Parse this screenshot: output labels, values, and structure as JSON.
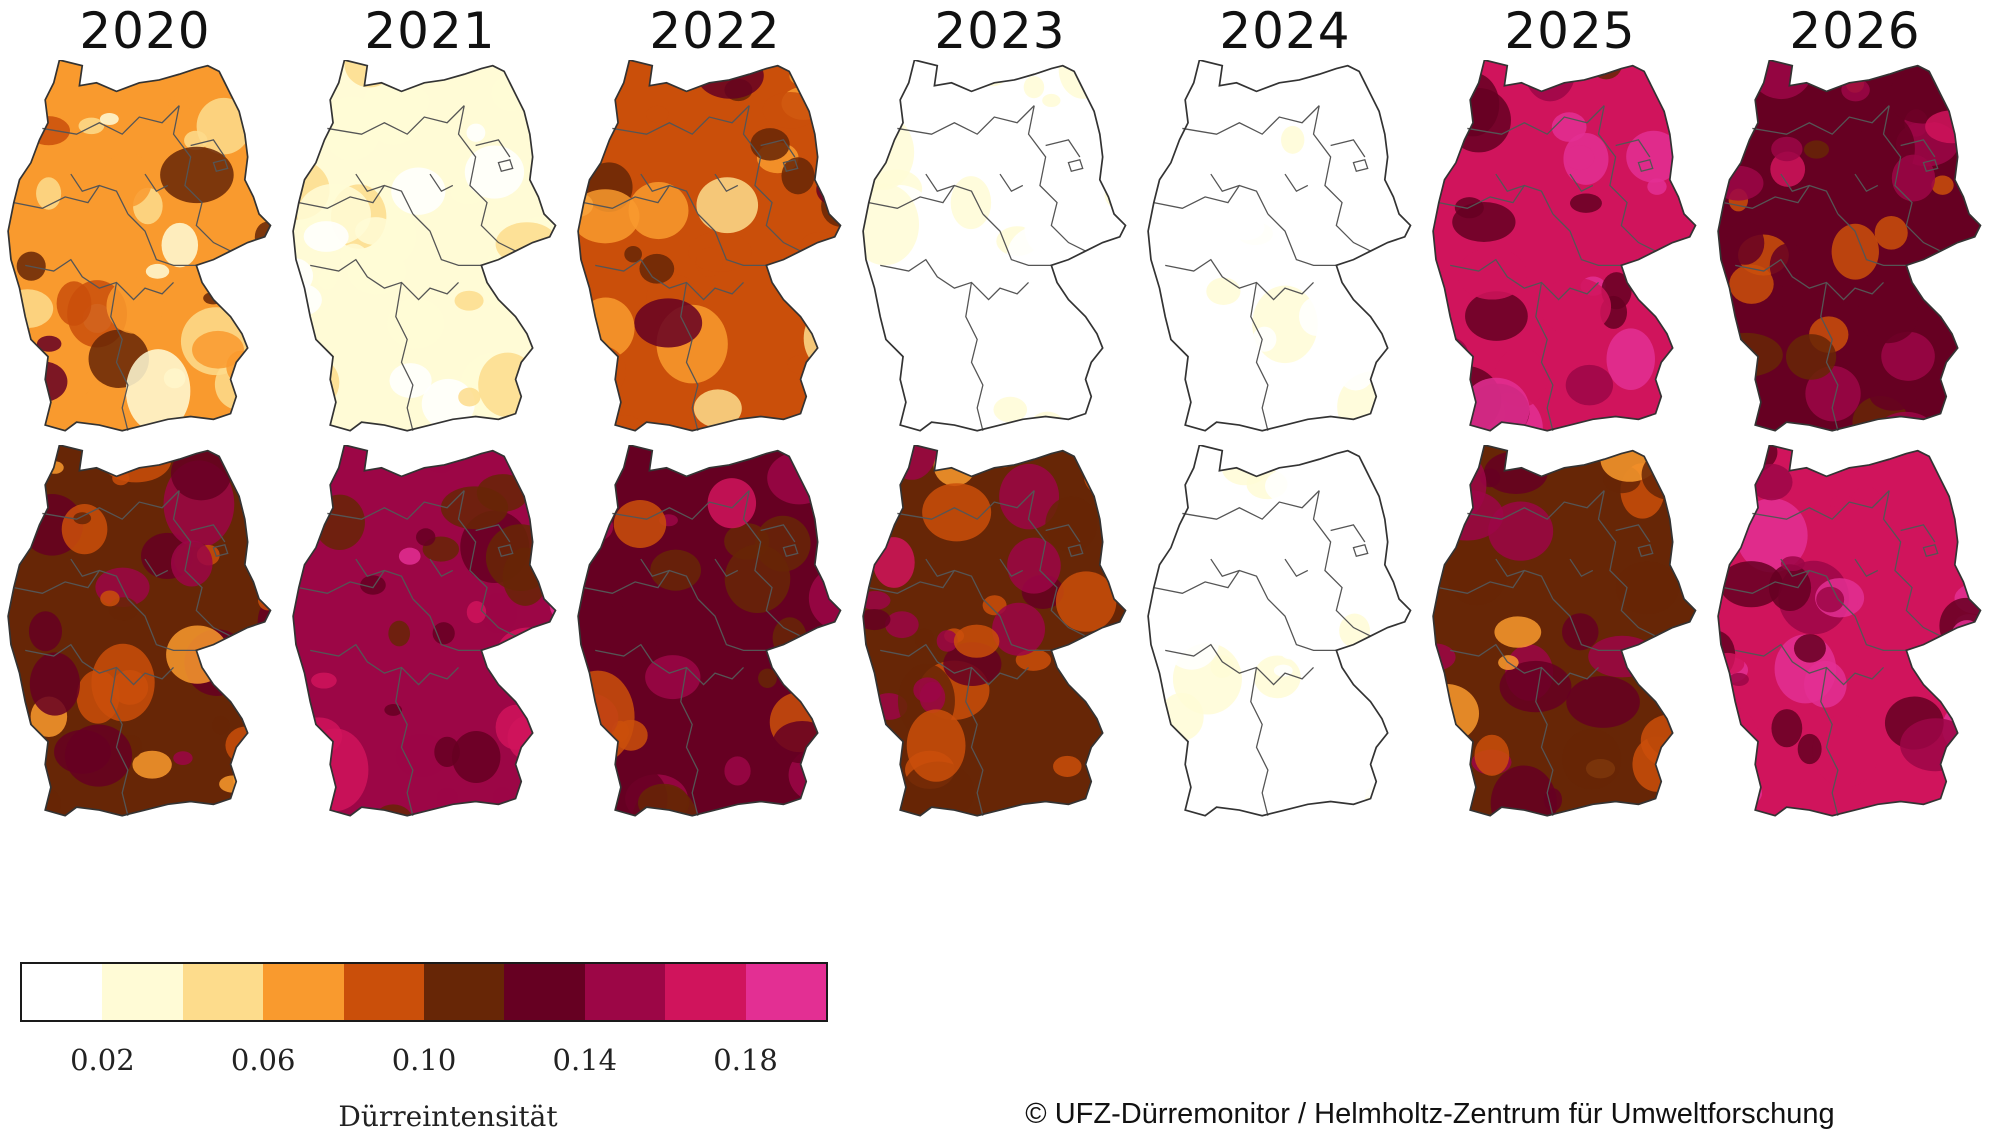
{
  "years": [
    "2020",
    "2021",
    "2022",
    "2023",
    "2024",
    "2025",
    "2026"
  ],
  "map_rows": [
    {
      "intensity": [
        0.075,
        0.022,
        0.085,
        0.012,
        0.01,
        0.16,
        0.125
      ]
    },
    {
      "intensity": [
        0.105,
        0.14,
        0.12,
        0.118,
        0.006,
        0.11,
        0.16
      ]
    }
  ],
  "legend": {
    "title": "Dürreintensität",
    "classes": [
      {
        "from": 0.0,
        "to": 0.02,
        "color": "#ffffff"
      },
      {
        "from": 0.02,
        "to": 0.04,
        "color": "#fffbd6"
      },
      {
        "from": 0.04,
        "to": 0.06,
        "color": "#fddc8c"
      },
      {
        "from": 0.06,
        "to": 0.08,
        "color": "#f99a2e"
      },
      {
        "from": 0.08,
        "to": 0.1,
        "color": "#ca4f0a"
      },
      {
        "from": 0.1,
        "to": 0.12,
        "color": "#672606"
      },
      {
        "from": 0.12,
        "to": 0.14,
        "color": "#660022"
      },
      {
        "from": 0.14,
        "to": 0.16,
        "color": "#9c0646"
      },
      {
        "from": 0.16,
        "to": 0.18,
        "color": "#d0145c"
      },
      {
        "from": 0.18,
        "to": 0.2,
        "color": "#e32f93"
      }
    ],
    "tick_labels": [
      "0.02",
      "0.06",
      "0.10",
      "0.14",
      "0.18"
    ],
    "tick_values": [
      0.02,
      0.06,
      0.1,
      0.14,
      0.18
    ]
  },
  "copyright": "© UFZ-Dürremonitor / Helmholtz-Zentrum für Umweltforschung"
}
